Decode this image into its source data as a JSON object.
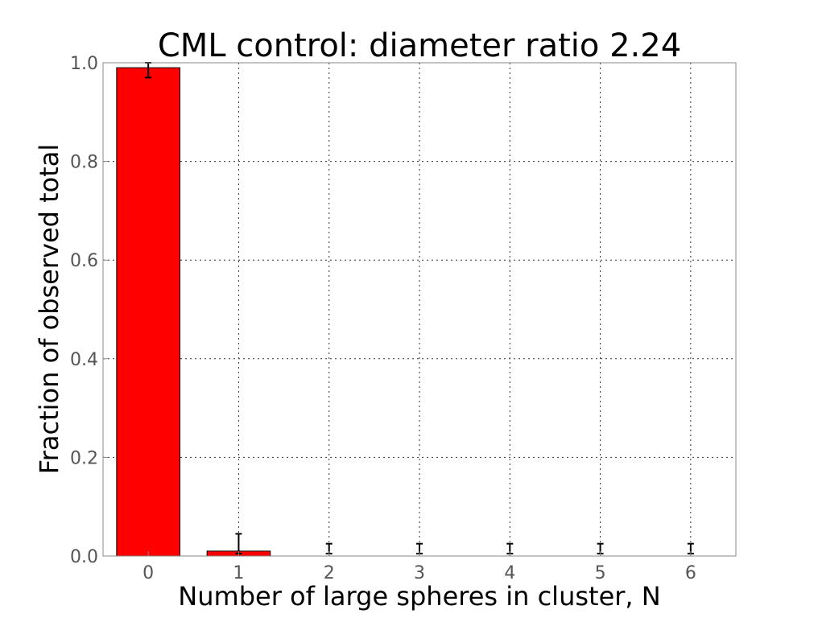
{
  "chart_data": {
    "type": "bar",
    "title": "CML control: diameter ratio 2.24",
    "xlabel": "Number of large spheres in cluster, N",
    "ylabel": "Fraction of observed total",
    "categories": [
      "0",
      "1",
      "2",
      "3",
      "4",
      "5",
      "6"
    ],
    "values": [
      0.99,
      0.01,
      0.0,
      0.0,
      0.0,
      0.0,
      0.0
    ],
    "error_low": [
      0.97,
      0.005,
      0.005,
      0.005,
      0.005,
      0.005,
      0.005
    ],
    "error_high": [
      1.0,
      0.045,
      0.025,
      0.025,
      0.025,
      0.025,
      0.025
    ],
    "ylim": [
      0,
      1.0
    ],
    "yticks": [
      "0.0",
      "0.2",
      "0.4",
      "0.6",
      "0.8",
      "1.0"
    ],
    "ytick_values": [
      0.0,
      0.2,
      0.4,
      0.6,
      0.8,
      1.0
    ],
    "grid": true,
    "bar_color": "#ff0000"
  }
}
